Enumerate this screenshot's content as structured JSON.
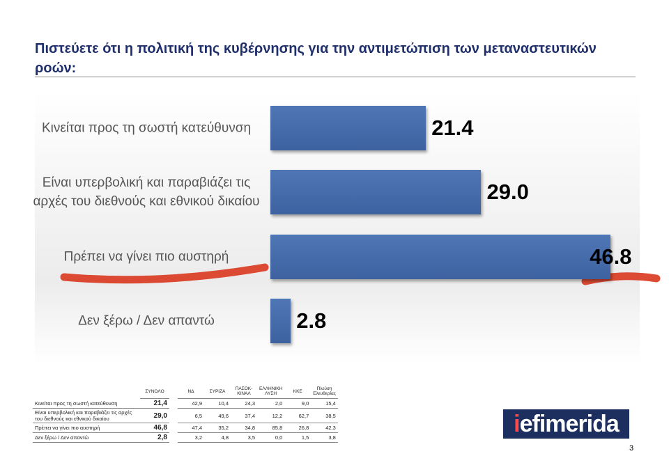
{
  "chart_data": {
    "type": "bar",
    "orientation": "horizontal",
    "title": "Πιστεύετε ότι η πολιτική της κυβέρνησης για την αντιμετώπιση των μεταναστευτικών ροών:",
    "categories": [
      "Κινείται προς τη σωστή κατεύθυνση",
      "Είναι υπερβολική και παραβιάζει τις αρχές του διεθνούς και εθνικού δικαίου",
      "Πρέπει να γίνει πιο αυστηρή",
      "Δεν ξέρω / Δεν απαντώ"
    ],
    "values": [
      21.4,
      29.0,
      46.8,
      2.8
    ],
    "value_labels": [
      "21.4",
      "29.0",
      "46.8",
      "2.8"
    ],
    "color": "#4f76b5"
  },
  "table": {
    "header": [
      "ΣΥΝΟΛΟ",
      "ΝΔ",
      "ΣΥΡΙΖΑ",
      "ΠΑΣΟΚ-ΚΙΝΑΛ",
      "ΕΛΛΗΝΙΚΗ ΛΥΣΗ",
      "ΚΚΕ",
      "Πλεύση Ελευθερίας"
    ],
    "rows": [
      [
        "Κινείται προς τη σωστή κατεύθυνση",
        "21,4",
        "42,9",
        "10,4",
        "24,3",
        "2,0",
        "9,0",
        "15,4"
      ],
      [
        "Είναι υπερβολική και παραβιάζει τις αρχές του διεθνούς και εθνικού δικαίου",
        "29,0",
        "6,5",
        "49,6",
        "37,4",
        "12,2",
        "62,7",
        "38,5"
      ],
      [
        "Πρέπει να γίνει πιο αυστηρή",
        "46,8",
        "47,4",
        "35,2",
        "34,8",
        "85,8",
        "26,8",
        "42,3"
      ],
      [
        "Δεν ξέρω / Δεν απαντώ",
        "2,8",
        "3,2",
        "4,8",
        "3,5",
        "0,0",
        "1,5",
        "3,8"
      ]
    ]
  },
  "logo": {
    "i": "i",
    "rest": "efimerida"
  },
  "page_number": "3"
}
